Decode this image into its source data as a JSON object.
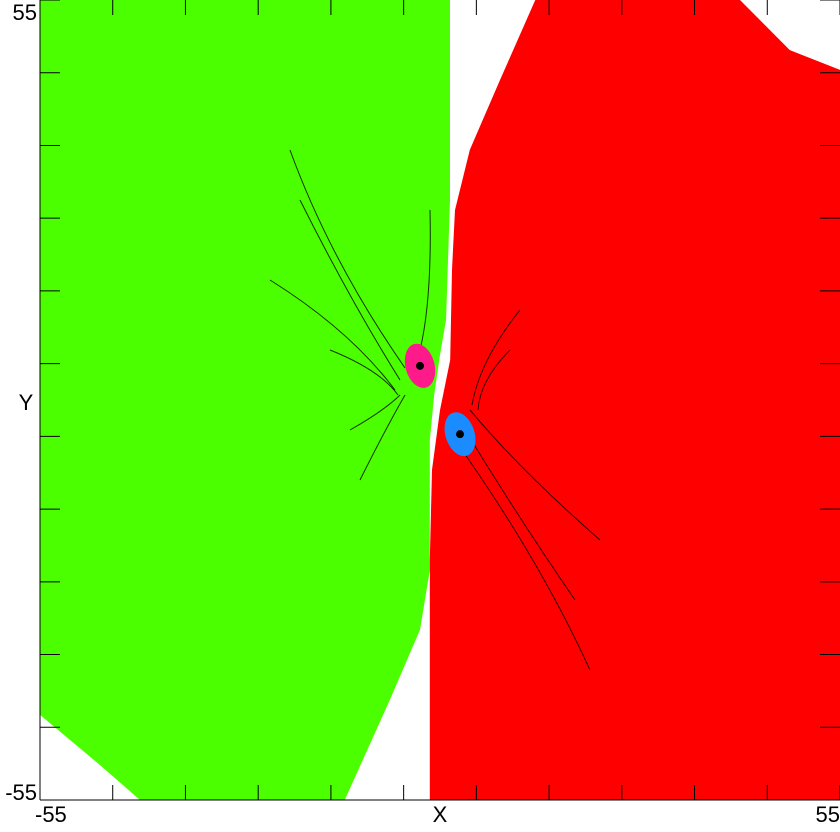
{
  "chart_data": {
    "type": "basin",
    "x_label": "X",
    "y_label": "Y",
    "xlim": [
      -55,
      55
    ],
    "ylim": [
      -55,
      55
    ],
    "xticks": [
      -55,
      {
        "value": -45,
        "label": null
      },
      {
        "value": -35,
        "label": null
      },
      {
        "value": -25,
        "label": null
      },
      {
        "value": -15,
        "label": null
      },
      {
        "value": -5,
        "label": null
      },
      {
        "value": 5,
        "label": null
      },
      {
        "value": 15,
        "label": null
      },
      {
        "value": 25,
        "label": null
      },
      {
        "value": 35,
        "label": null
      },
      {
        "value": 45,
        "label": null
      },
      55
    ],
    "yticks": [
      -55,
      {
        "value": -45,
        "label": null
      },
      {
        "value": -35,
        "label": null
      },
      {
        "value": -25,
        "label": null
      },
      {
        "value": -15,
        "label": null
      },
      {
        "value": -5,
        "label": null
      },
      {
        "value": 5,
        "label": null
      },
      {
        "value": 15,
        "label": null
      },
      {
        "value": 25,
        "label": null
      },
      {
        "value": 35,
        "label": null
      },
      {
        "value": 45,
        "label": null
      },
      55
    ],
    "regions": [
      {
        "color": "#4cff00",
        "points": [
          [
            -55,
            55
          ],
          [
            1.375,
            55
          ],
          [
            1.375,
            27.5
          ],
          [
            0.83,
            11
          ],
          [
            0,
            6.2
          ],
          [
            -0.8,
            0.7
          ],
          [
            -1.4,
            -5.5
          ],
          [
            -1.4,
            -23.4
          ],
          [
            -2.75,
            -31.6
          ],
          [
            -6.9,
            -41.25
          ],
          [
            -13.1,
            -55
          ],
          [
            -41.25,
            -55
          ],
          [
            -46.75,
            -50.2
          ],
          [
            -55,
            -43.3
          ]
        ]
      },
      {
        "color": "#ff0000",
        "points": [
          [
            13.1,
            55
          ],
          [
            41.25,
            55
          ],
          [
            48.1,
            48.1
          ],
          [
            55,
            45.4
          ],
          [
            55,
            -55
          ],
          [
            -1.4,
            -55
          ],
          [
            -1.4,
            -22
          ],
          [
            -1.1,
            -9.6
          ],
          [
            0,
            -1.4
          ],
          [
            1.4,
            5.5
          ],
          [
            1.65,
            17.9
          ],
          [
            2.06,
            26.1
          ],
          [
            4.1,
            34.4
          ],
          [
            8.25,
            44
          ]
        ]
      }
    ],
    "attractors": [
      {
        "x": -2.75,
        "y": 4.7,
        "color": "#ff1a8c",
        "rx": 2.0,
        "ry": 3.1,
        "angle": -15
      },
      {
        "x": 2.75,
        "y": -4.7,
        "color": "#1a8cff",
        "rx": 2.0,
        "ry": 3.1,
        "angle": -18
      }
    ]
  }
}
